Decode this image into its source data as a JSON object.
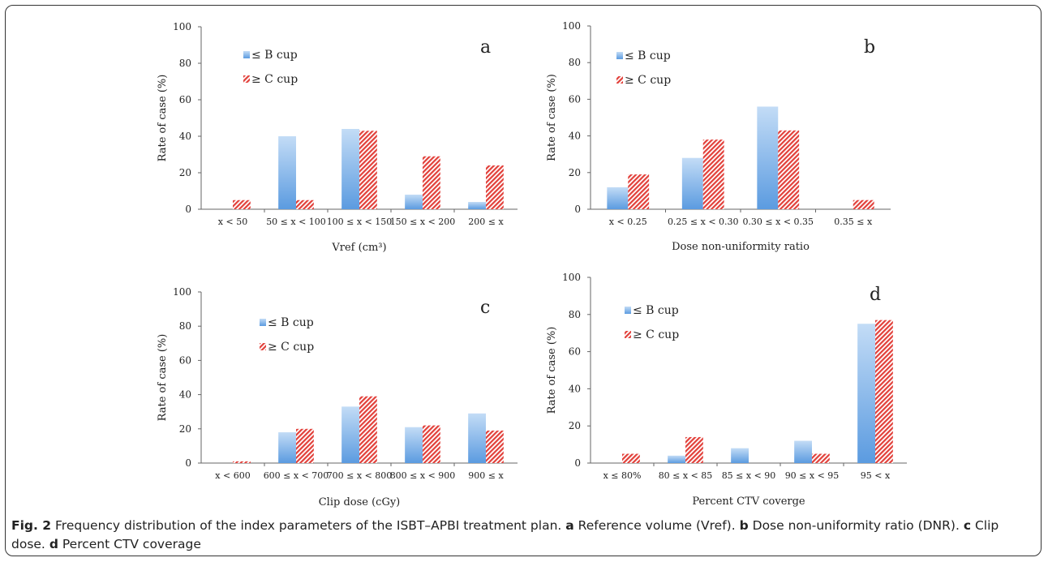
{
  "legend": {
    "le_b": "≤ B cup",
    "ge_c": "≥ C cup"
  },
  "colors": {
    "le_b": "#5b9be0",
    "ge_c": "#e2403a"
  },
  "chart_data": [
    {
      "type": "bar",
      "panel": "a",
      "categories": [
        "x < 50",
        "50 ≤ x < 100",
        "100 ≤ x < 150",
        "150 ≤ x < 200",
        "200 ≤ x"
      ],
      "series": [
        {
          "name": "≤ B cup",
          "values": [
            0,
            40,
            44,
            8,
            4
          ]
        },
        {
          "name": "≥ C cup",
          "values": [
            5,
            5,
            43,
            29,
            24
          ]
        }
      ],
      "xlabel": "Vref (cm³)",
      "ylabel": "Rate of case (%)",
      "ylim": [
        0,
        100
      ],
      "yticks": [
        0,
        20,
        40,
        60,
        80,
        100
      ],
      "legend_position": "top-left"
    },
    {
      "type": "bar",
      "panel": "b",
      "categories": [
        "x < 0.25",
        "0.25 ≤ x < 0.30",
        "0.30 ≤ x < 0.35",
        "0.35 ≤ x"
      ],
      "series": [
        {
          "name": "≤ B cup",
          "values": [
            12,
            28,
            56,
            0
          ]
        },
        {
          "name": "≥ C cup",
          "values": [
            19,
            38,
            43,
            5
          ]
        }
      ],
      "xlabel": "Dose non-uniformity ratio",
      "ylabel": "Rate of case (%)",
      "ylim": [
        0,
        100
      ],
      "yticks": [
        0,
        20,
        40,
        60,
        80,
        100
      ],
      "legend_position": "top-left"
    },
    {
      "type": "bar",
      "panel": "c",
      "categories": [
        "x < 600",
        "600 ≤ x < 700",
        "700 ≤ x < 800",
        "800 ≤ x < 900",
        "900 ≤ x"
      ],
      "series": [
        {
          "name": "≤ B cup",
          "values": [
            0,
            18,
            33,
            21,
            29
          ]
        },
        {
          "name": "≥ C cup",
          "values": [
            1,
            20,
            39,
            22,
            19
          ]
        }
      ],
      "xlabel": "Clip dose (cGy)",
      "ylabel": "Rate of case (%)",
      "ylim": [
        0,
        100
      ],
      "yticks": [
        0,
        20,
        40,
        60,
        80,
        100
      ],
      "legend_position": "top-center"
    },
    {
      "type": "bar",
      "panel": "d",
      "categories": [
        "x ≤ 80%",
        "80 ≤ x < 85",
        "85 ≤ x < 90",
        "90 ≤ x < 95",
        "95 < x"
      ],
      "series": [
        {
          "name": "≤ B cup",
          "values": [
            0,
            4,
            8,
            12,
            75
          ]
        },
        {
          "name": "≥ C cup",
          "values": [
            5,
            14,
            0,
            5,
            77
          ]
        }
      ],
      "xlabel": "Percent CTV coverge",
      "ylabel": "Rate of case (%)",
      "ylim": [
        0,
        100
      ],
      "yticks": [
        0,
        20,
        40,
        60,
        80,
        100
      ],
      "legend_position": "top-left"
    }
  ],
  "caption": {
    "fig_label": "Fig. 2",
    "text": "Frequency distribution of the index parameters of the ISBT–APBI treatment plan.",
    "a_label": "a",
    "a_text": "Reference volume (Vref).",
    "b_label": "b",
    "b_text": "Dose non-uniformity ratio (DNR).",
    "c_label": "c",
    "c_text": "Clip dose.",
    "d_label": "d",
    "d_text": "Percent CTV coverage"
  }
}
